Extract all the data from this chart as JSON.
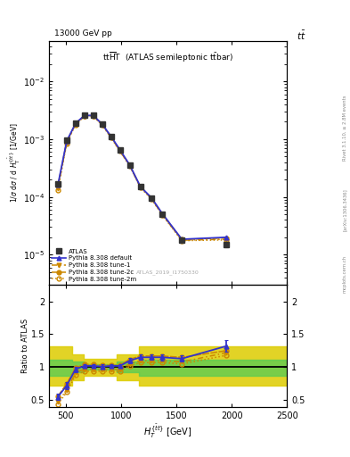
{
  "header_left": "13000 GeV pp",
  "header_right": "tt",
  "plot_title": "tt$\\overline{\\rm H}$T  (ATLAS semileptonic t$\\bar{\\rm t}$bar)",
  "watermark": "ATLAS_2019_I1750330",
  "ylabel_main": "1 / $\\sigma$ d$\\sigma$ / d $H_T^{\\{\\bar{t}t\\}}$ [1/GeV]",
  "ylabel_ratio": "Ratio to ATLAS",
  "xlabel": "$H_T^{\\{\\bar{t}t\\}}$ [GeV]",
  "xlim": [
    350,
    2500
  ],
  "ylim_main": [
    3e-06,
    0.05
  ],
  "ylim_ratio": [
    0.4,
    2.25
  ],
  "ratio_yticks": [
    0.5,
    1.0,
    1.5,
    2.0
  ],
  "xticks": [
    500,
    1000,
    1500,
    2000,
    2500
  ],
  "x_data": [
    430,
    510,
    590,
    670,
    750,
    830,
    910,
    990,
    1080,
    1175,
    1275,
    1375,
    1550,
    1950
  ],
  "atlas_y": [
    0.00017,
    0.00095,
    0.0019,
    0.0026,
    0.0026,
    0.00185,
    0.0011,
    0.00065,
    0.00035,
    0.00015,
    9.5e-05,
    5e-05,
    1.8e-05,
    1.5e-05
  ],
  "atlas_yerr": [
    8e-06,
    3e-05,
    5e-05,
    7e-05,
    7e-05,
    5e-05,
    3e-05,
    2e-05,
    1.2e-05,
    6e-06,
    4e-06,
    2.5e-06,
    1.2e-06,
    1.5e-06
  ],
  "py_default_y": [
    0.00016,
    0.00093,
    0.00188,
    0.00258,
    0.00258,
    0.00183,
    0.00112,
    0.00066,
    0.000355,
    0.000152,
    9.7e-05,
    5.1e-05,
    1.85e-05,
    2e-05
  ],
  "py_tune1_y": [
    0.00014,
    0.00088,
    0.00183,
    0.00252,
    0.00253,
    0.00179,
    0.00108,
    0.00063,
    0.000345,
    0.000148,
    9.4e-05,
    4.9e-05,
    1.78e-05,
    1.85e-05
  ],
  "py_tune2c_y": [
    0.000155,
    0.00091,
    0.00186,
    0.00256,
    0.00256,
    0.00182,
    0.00111,
    0.00065,
    0.000352,
    0.000151,
    9.6e-05,
    5.05e-05,
    1.83e-05,
    1.95e-05
  ],
  "py_tune2m_y": [
    0.00013,
    0.00085,
    0.00179,
    0.00248,
    0.00249,
    0.00176,
    0.00106,
    0.00062,
    0.00034,
    0.000146,
    9.2e-05,
    4.8e-05,
    1.75e-05,
    1.8e-05
  ],
  "ratio_default": [
    0.55,
    0.72,
    0.97,
    1.02,
    1.02,
    1.01,
    1.02,
    1.02,
    1.1,
    1.15,
    1.15,
    1.15,
    1.13,
    1.32
  ],
  "ratio_tune1": [
    0.48,
    0.65,
    0.92,
    0.97,
    0.97,
    0.97,
    0.97,
    0.97,
    1.05,
    1.1,
    1.1,
    1.1,
    1.08,
    1.22
  ],
  "ratio_tune2c": [
    0.56,
    0.75,
    0.99,
    1.04,
    1.04,
    1.03,
    1.03,
    1.03,
    1.12,
    1.17,
    1.17,
    1.17,
    1.15,
    1.25
  ],
  "ratio_tune2m": [
    0.44,
    0.62,
    0.88,
    0.94,
    0.94,
    0.94,
    0.94,
    0.94,
    1.02,
    1.07,
    1.07,
    1.07,
    1.05,
    1.18
  ],
  "ratio_default_err": [
    0.05,
    0.05,
    0.04,
    0.03,
    0.03,
    0.03,
    0.03,
    0.03,
    0.04,
    0.04,
    0.04,
    0.05,
    0.05,
    0.09
  ],
  "yellow_band_edges": [
    350,
    470,
    560,
    660,
    760,
    860,
    960,
    1160,
    1760,
    2500
  ],
  "yellow_band_lo": [
    0.72,
    0.72,
    0.8,
    0.87,
    0.87,
    0.87,
    0.8,
    0.72,
    0.72,
    0.72
  ],
  "yellow_band_hi": [
    1.32,
    1.32,
    1.2,
    1.13,
    1.13,
    1.13,
    1.2,
    1.32,
    1.32,
    1.32
  ],
  "green_band_edges": [
    350,
    470,
    560,
    660,
    760,
    860,
    960,
    1160,
    1760,
    2500
  ],
  "green_band_lo": [
    0.87,
    0.87,
    0.93,
    0.96,
    0.96,
    0.96,
    0.93,
    0.87,
    0.87,
    0.87
  ],
  "green_band_hi": [
    1.12,
    1.12,
    1.08,
    1.04,
    1.04,
    1.04,
    1.08,
    1.12,
    1.12,
    1.12
  ],
  "color_atlas": "#333333",
  "color_blue": "#3333cc",
  "color_orange": "#cc8800",
  "color_green_band": "#55cc55",
  "color_yellow_band": "#ddcc00",
  "legend_labels": [
    "ATLAS",
    "Pythia 8.308 default",
    "Pythia 8.308 tune-1",
    "Pythia 8.308 tune-2c",
    "Pythia 8.308 tune-2m"
  ]
}
